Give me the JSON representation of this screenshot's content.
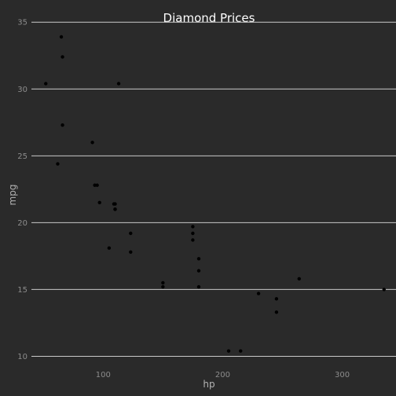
{
  "chart_data": {
    "type": "scatter",
    "title": "Diamond Prices",
    "xlabel": "hp",
    "ylabel": "mpg",
    "xlim": [
      40,
      345
    ],
    "ylim": [
      9.5,
      35.6
    ],
    "x_ticks": [
      100,
      200,
      300
    ],
    "y_ticks": [
      10,
      15,
      20,
      25,
      30,
      35
    ],
    "x_gridlines": false,
    "y_gridlines": true,
    "legend": "none",
    "colors": {
      "background": "#2a2a2a",
      "point": "#000000",
      "grid": "#c9c9c9",
      "title": "#ffffff"
    },
    "points": [
      {
        "x": 110,
        "y": 21.0
      },
      {
        "x": 110,
        "y": 21.0
      },
      {
        "x": 93,
        "y": 22.8
      },
      {
        "x": 110,
        "y": 21.4
      },
      {
        "x": 175,
        "y": 18.7
      },
      {
        "x": 105,
        "y": 18.1
      },
      {
        "x": 245,
        "y": 14.3
      },
      {
        "x": 62,
        "y": 24.4
      },
      {
        "x": 95,
        "y": 22.8
      },
      {
        "x": 123,
        "y": 19.2
      },
      {
        "x": 123,
        "y": 17.8
      },
      {
        "x": 180,
        "y": 16.4
      },
      {
        "x": 180,
        "y": 17.3
      },
      {
        "x": 180,
        "y": 15.2
      },
      {
        "x": 205,
        "y": 10.4
      },
      {
        "x": 215,
        "y": 10.4
      },
      {
        "x": 230,
        "y": 14.7
      },
      {
        "x": 66,
        "y": 32.4
      },
      {
        "x": 52,
        "y": 30.4
      },
      {
        "x": 65,
        "y": 33.9
      },
      {
        "x": 97,
        "y": 21.5
      },
      {
        "x": 150,
        "y": 15.5
      },
      {
        "x": 150,
        "y": 15.2
      },
      {
        "x": 245,
        "y": 13.3
      },
      {
        "x": 175,
        "y": 19.2
      },
      {
        "x": 66,
        "y": 27.3
      },
      {
        "x": 91,
        "y": 26.0
      },
      {
        "x": 113,
        "y": 30.4
      },
      {
        "x": 264,
        "y": 15.8
      },
      {
        "x": 175,
        "y": 19.7
      },
      {
        "x": 335,
        "y": 15.0
      },
      {
        "x": 109,
        "y": 21.4
      }
    ]
  }
}
